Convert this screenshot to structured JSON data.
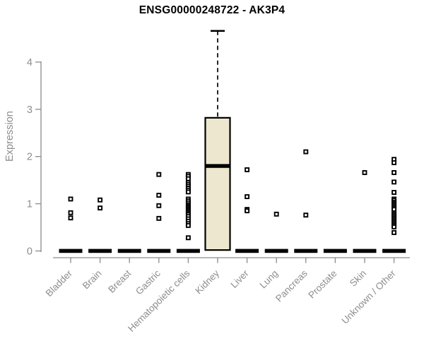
{
  "chart_data": {
    "type": "boxplot",
    "title": "ENSG00000248722 - AK3P4",
    "xlabel": "",
    "ylabel": "Expression",
    "ylim": [
      0,
      4.7
    ],
    "yticks": [
      0,
      1,
      2,
      3,
      4
    ],
    "grid": false,
    "legend": "none",
    "colors": {
      "box_fill": "#ECE7CE",
      "box_stroke": "#000000",
      "collapsed_bar": "#000000",
      "axis": "#8a8a8a",
      "tick_text": "#8d8d8d",
      "title_text": "#000000",
      "point_stroke": "#000000",
      "point_fill": "#ffffff"
    },
    "categories": [
      "Bladder",
      "Brain",
      "Breast",
      "Gastric",
      "Hematopoietic cells",
      "Kidney",
      "Liver",
      "Lung",
      "Pancreas",
      "Prostate",
      "Skin",
      "Unknown / Other"
    ],
    "boxes": [
      {
        "category": "Bladder",
        "q1": 0,
        "median": 0,
        "q3": 0,
        "whisker_low": 0,
        "whisker_high": 0,
        "points": [
          1.1,
          0.81,
          0.7
        ]
      },
      {
        "category": "Brain",
        "q1": 0,
        "median": 0,
        "q3": 0,
        "whisker_low": 0,
        "whisker_high": 0,
        "points": [
          1.08,
          0.91
        ]
      },
      {
        "category": "Breast",
        "q1": 0,
        "median": 0,
        "q3": 0,
        "whisker_low": 0,
        "whisker_high": 0,
        "points": []
      },
      {
        "category": "Gastric",
        "q1": 0,
        "median": 0,
        "q3": 0,
        "whisker_low": 0,
        "whisker_high": 0,
        "points": [
          1.62,
          1.18,
          0.96,
          0.69
        ]
      },
      {
        "category": "Hematopoietic cells",
        "q1": 0,
        "median": 0,
        "q3": 0,
        "whisker_low": 0,
        "whisker_high": 0,
        "points": [
          1.62,
          1.58,
          1.53,
          1.45,
          1.41,
          1.37,
          1.33,
          1.29,
          1.25,
          1.1,
          1.06,
          1.02,
          0.98,
          0.95,
          0.92,
          0.89,
          0.86,
          0.83,
          0.8,
          0.77,
          0.73,
          0.68,
          0.63,
          0.58,
          0.54,
          0.28
        ]
      },
      {
        "category": "Kidney",
        "q1": 0.02,
        "median": 1.8,
        "q3": 2.82,
        "whisker_low": 0.02,
        "whisker_high": 4.66,
        "points": []
      },
      {
        "category": "Liver",
        "q1": 0,
        "median": 0,
        "q3": 0,
        "whisker_low": 0,
        "whisker_high": 0,
        "points": [
          1.72,
          1.15,
          0.88,
          0.85
        ]
      },
      {
        "category": "Lung",
        "q1": 0,
        "median": 0,
        "q3": 0,
        "whisker_low": 0,
        "whisker_high": 0,
        "points": [
          0.78
        ]
      },
      {
        "category": "Pancreas",
        "q1": 0,
        "median": 0,
        "q3": 0,
        "whisker_low": 0,
        "whisker_high": 0,
        "points": [
          2.1,
          0.76
        ]
      },
      {
        "category": "Prostate",
        "q1": 0,
        "median": 0,
        "q3": 0,
        "whisker_low": 0,
        "whisker_high": 0,
        "points": []
      },
      {
        "category": "Skin",
        "q1": 0,
        "median": 0,
        "q3": 0,
        "whisker_low": 0,
        "whisker_high": 0,
        "points": [
          1.66
        ]
      },
      {
        "category": "Unknown / Other",
        "q1": 0,
        "median": 0,
        "q3": 0,
        "whisker_low": 0,
        "whisker_high": 0,
        "points": [
          1.94,
          1.87,
          1.66,
          1.46,
          1.24,
          1.1,
          1.07,
          1.03,
          1.0,
          0.97,
          0.94,
          0.91,
          0.88,
          0.81,
          0.78,
          0.75,
          0.72,
          0.69,
          0.66,
          0.63,
          0.6,
          0.57,
          0.54,
          0.51,
          0.39
        ]
      }
    ]
  }
}
